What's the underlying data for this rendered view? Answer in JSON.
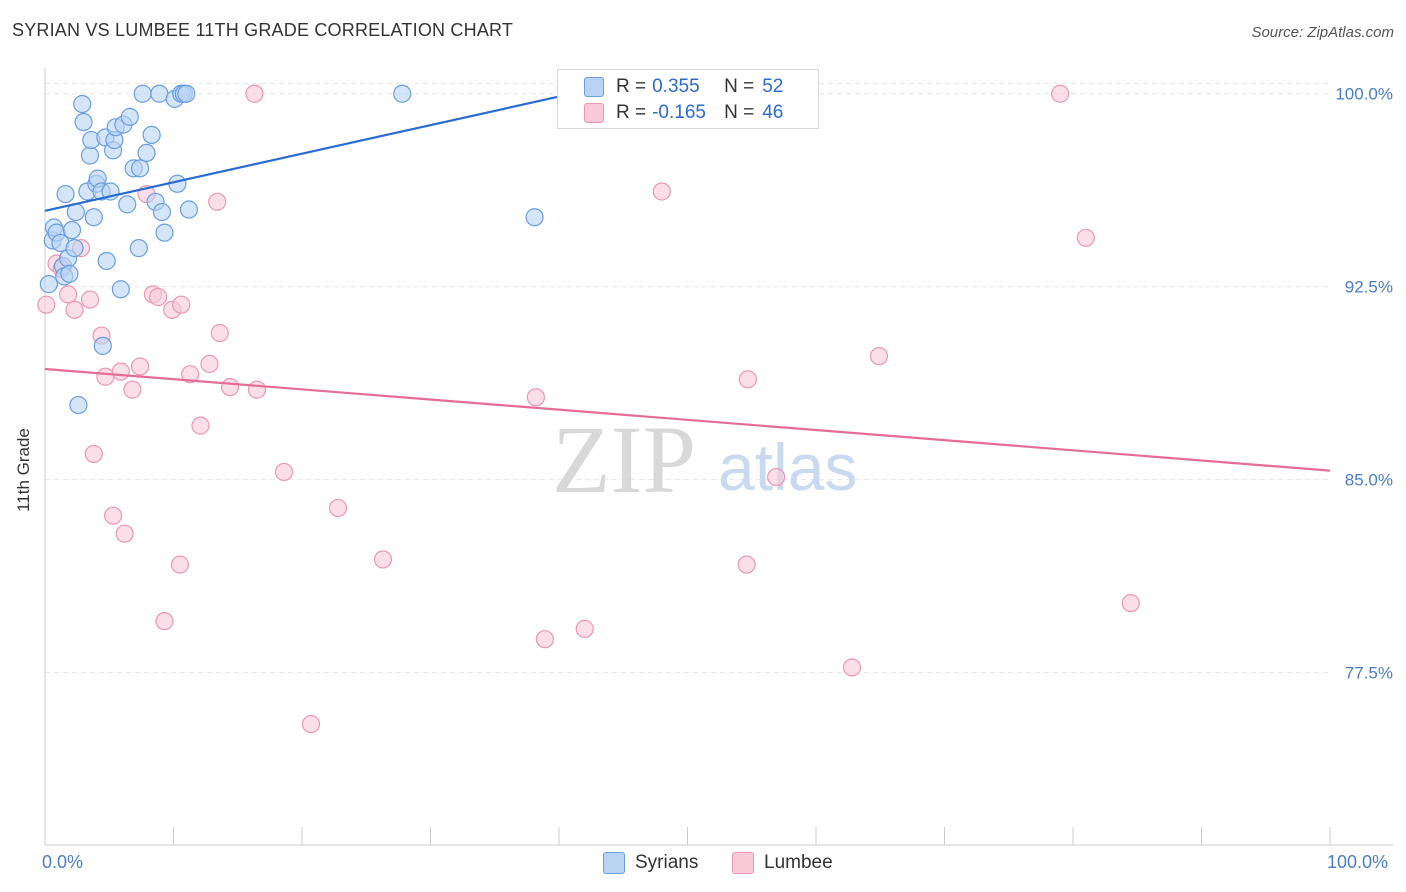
{
  "header": {
    "title": "SYRIAN VS LUMBEE 11TH GRADE CORRELATION CHART",
    "source": "Source: ZipAtlas.com"
  },
  "watermark": {
    "zip": "ZIP",
    "atlas": "atlas"
  },
  "colors": {
    "syrians_fill": "#b9d3f3",
    "syrians_stroke": "#6a9ede",
    "syrians_line": "#2b6bd0",
    "lumbee_fill": "#f9c9d8",
    "lumbee_stroke": "#eb97b2",
    "lumbee_line": "#e46c96",
    "grid": "#e6e6e6",
    "tick_text": "#4a7cc9"
  },
  "legend_top": [
    {
      "r_label": "R =",
      "r_value": "0.355",
      "n_label": "N =",
      "n_value": "52",
      "series": "Syrians"
    },
    {
      "r_label": "R =",
      "r_value": "-0.165",
      "n_label": "N =",
      "n_value": "46",
      "series": "Lumbee"
    }
  ],
  "legend_bottom": [
    {
      "label": "Syrians"
    },
    {
      "label": "Lumbee"
    }
  ],
  "chart_data": {
    "type": "scatter",
    "title": "SYRIAN VS LUMBEE 11TH GRADE CORRELATION CHART",
    "xlabel": "",
    "ylabel": "11th Grade",
    "xlim": [
      0,
      100
    ],
    "ylim": [
      70.8,
      101.0
    ],
    "x_tick_labels": [
      "0.0%",
      "100.0%"
    ],
    "y_ticks": [
      {
        "value": 100.0,
        "label": "100.0%"
      },
      {
        "value": 92.5,
        "label": "92.5%"
      },
      {
        "value": 85.0,
        "label": "85.0%"
      },
      {
        "value": 77.5,
        "label": "77.5%"
      }
    ],
    "grid": true,
    "legend_position": "top-center",
    "series": [
      {
        "name": "Syrians",
        "r": 0.355,
        "n": 52,
        "trend": {
          "x": [
            0,
            41
          ],
          "y": [
            95.45,
            100.0
          ]
        },
        "points": [
          [
            0.3,
            92.6
          ],
          [
            0.6,
            94.3
          ],
          [
            0.7,
            94.8
          ],
          [
            0.9,
            94.6
          ],
          [
            1.2,
            94.2
          ],
          [
            1.4,
            93.3
          ],
          [
            1.5,
            92.9
          ],
          [
            1.6,
            96.1
          ],
          [
            1.8,
            93.6
          ],
          [
            1.9,
            93.0
          ],
          [
            2.1,
            94.7
          ],
          [
            2.3,
            94.0
          ],
          [
            2.4,
            95.4
          ],
          [
            2.6,
            87.9
          ],
          [
            2.9,
            99.6
          ],
          [
            3.0,
            98.9
          ],
          [
            3.3,
            96.2
          ],
          [
            3.5,
            97.6
          ],
          [
            3.6,
            98.2
          ],
          [
            3.8,
            95.2
          ],
          [
            4.0,
            96.5
          ],
          [
            4.1,
            96.7
          ],
          [
            4.4,
            96.2
          ],
          [
            4.5,
            90.2
          ],
          [
            4.7,
            98.3
          ],
          [
            4.8,
            93.5
          ],
          [
            5.1,
            96.2
          ],
          [
            5.3,
            97.8
          ],
          [
            5.4,
            98.2
          ],
          [
            5.5,
            98.7
          ],
          [
            5.9,
            92.4
          ],
          [
            6.1,
            98.8
          ],
          [
            6.4,
            95.7
          ],
          [
            6.6,
            99.1
          ],
          [
            6.9,
            97.1
          ],
          [
            7.3,
            94.0
          ],
          [
            7.4,
            97.1
          ],
          [
            7.6,
            100.0
          ],
          [
            7.9,
            97.7
          ],
          [
            8.3,
            98.4
          ],
          [
            8.6,
            95.8
          ],
          [
            8.9,
            100.0
          ],
          [
            9.1,
            95.4
          ],
          [
            9.3,
            94.6
          ],
          [
            10.1,
            99.8
          ],
          [
            10.3,
            96.5
          ],
          [
            10.6,
            100.0
          ],
          [
            10.8,
            100.0
          ],
          [
            11.0,
            100.0
          ],
          [
            11.2,
            95.5
          ],
          [
            27.8,
            100.0
          ],
          [
            38.1,
            95.2
          ]
        ]
      },
      {
        "name": "Lumbee",
        "r": -0.165,
        "n": 46,
        "trend": {
          "x": [
            0,
            100
          ],
          "y": [
            89.3,
            85.35
          ]
        },
        "points": [
          [
            0.1,
            91.8
          ],
          [
            0.9,
            93.4
          ],
          [
            1.3,
            93.2
          ],
          [
            1.8,
            92.2
          ],
          [
            2.3,
            91.6
          ],
          [
            2.8,
            94.0
          ],
          [
            3.5,
            92.0
          ],
          [
            3.8,
            86.0
          ],
          [
            4.4,
            90.6
          ],
          [
            4.7,
            89.0
          ],
          [
            5.3,
            83.6
          ],
          [
            5.9,
            89.2
          ],
          [
            6.2,
            82.9
          ],
          [
            6.8,
            88.5
          ],
          [
            7.4,
            89.4
          ],
          [
            7.9,
            96.1
          ],
          [
            8.4,
            92.2
          ],
          [
            8.8,
            92.1
          ],
          [
            9.3,
            79.5
          ],
          [
            9.9,
            91.6
          ],
          [
            10.5,
            81.7
          ],
          [
            10.6,
            91.8
          ],
          [
            11.3,
            89.1
          ],
          [
            12.1,
            87.1
          ],
          [
            12.8,
            89.5
          ],
          [
            13.4,
            95.8
          ],
          [
            13.6,
            90.7
          ],
          [
            14.4,
            88.6
          ],
          [
            16.3,
            100.0
          ],
          [
            16.5,
            88.5
          ],
          [
            18.6,
            85.3
          ],
          [
            20.7,
            75.5
          ],
          [
            22.8,
            83.9
          ],
          [
            26.3,
            81.9
          ],
          [
            38.2,
            88.2
          ],
          [
            38.9,
            78.8
          ],
          [
            42.0,
            79.2
          ],
          [
            48.0,
            96.2
          ],
          [
            54.6,
            81.7
          ],
          [
            54.7,
            88.9
          ],
          [
            56.9,
            85.1
          ],
          [
            62.8,
            77.7
          ],
          [
            64.9,
            89.8
          ],
          [
            79.0,
            100.0
          ],
          [
            81.0,
            94.4
          ],
          [
            84.5,
            80.2
          ]
        ]
      }
    ]
  }
}
